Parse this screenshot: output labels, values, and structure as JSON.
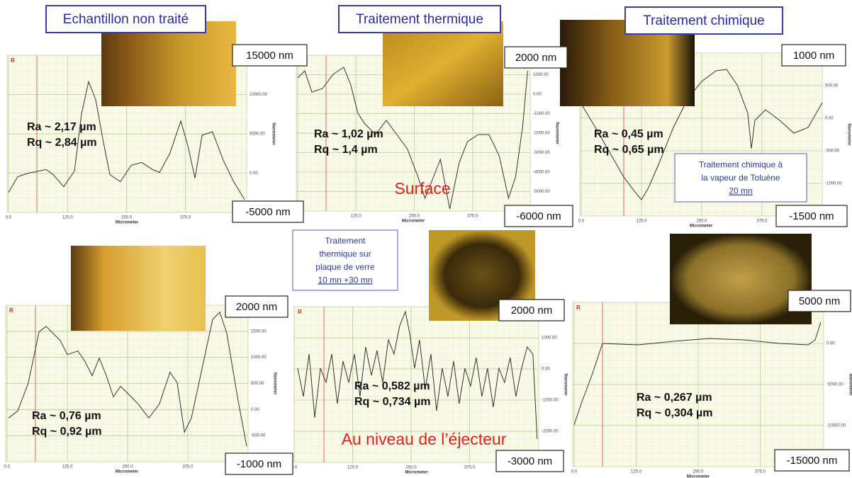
{
  "chart_data": [
    {
      "type": "line",
      "title": "Echantillon non traité",
      "ra": "Ra ~ 2,17 µm",
      "rq": "Rq ~ 2,84 µm",
      "top_label": "15000 nm",
      "bottom_label": "-5000 nm",
      "xlabel": "Micrometer",
      "ylabel": "Nanometer",
      "marker_label": "R",
      "color": "#333333",
      "x": [
        0,
        19.5,
        42,
        64.6,
        79.6,
        94.6,
        117,
        139.6,
        154.7,
        169.7,
        184.7,
        199.7,
        214.7,
        237,
        260,
        282,
        305,
        320,
        342,
        365,
        380,
        395,
        410,
        432,
        455,
        477,
        500
      ],
      "values": [
        -2450,
        -450,
        0,
        270,
        455,
        -180,
        -1730,
        270,
        7545,
        11640,
        9360,
        4360,
        -180,
        -1090,
        1000,
        1360,
        455,
        90,
        2545,
        6640,
        3450,
        -640,
        4820,
        5270,
        1640,
        -1090,
        -3360
      ],
      "xlim": [
        0,
        500
      ],
      "ylim": [
        -5000,
        15000
      ],
      "xticks": [
        {
          "value": 0,
          "label": "0.0"
        },
        {
          "value": 125,
          "label": "125.0"
        },
        {
          "value": 250,
          "label": "250.0"
        },
        {
          "value": 375,
          "label": "375.0"
        }
      ],
      "yticks": [
        {
          "value": 0,
          "label": "0.00"
        },
        {
          "value": 5000,
          "label": "5000.00"
        },
        {
          "value": 10000,
          "label": "10000.00"
        }
      ]
    },
    {
      "type": "line",
      "title": "Traitement thermique",
      "ra": "Ra ~ 1,02 µm",
      "rq": "Rq ~ 1,4 µm",
      "caption": "Surface",
      "top_label": "2000 nm",
      "bottom_label": "-6000 nm",
      "xlabel": "Micrometer",
      "ylabel": "Nanometer",
      "marker_label": "R",
      "color": "#333333",
      "x": [
        0,
        15.2,
        30.3,
        53.1,
        75.9,
        98.6,
        113.8,
        129,
        144,
        167,
        190,
        212.4,
        235,
        258,
        273,
        291,
        306,
        326,
        346,
        364,
        387,
        410,
        432,
        452,
        467,
        482,
        493
      ],
      "values": [
        836,
        1200,
        109,
        291,
        1018,
        1382,
        473,
        -982,
        -1527,
        -2073,
        -1345,
        -2073,
        -2800,
        -4255,
        -5345,
        -4255,
        -3345,
        -5891,
        -3527,
        -2436,
        -2073,
        -2073,
        -3164,
        -5345,
        -4255,
        -1709,
        1200
      ],
      "xlim": [
        0,
        500
      ],
      "ylim": [
        -6000,
        2000
      ],
      "xticks": [
        {
          "value": 0,
          "label": "0.0"
        },
        {
          "value": 125,
          "label": "125.0"
        },
        {
          "value": 250,
          "label": "250.0"
        },
        {
          "value": 375,
          "label": "375.0"
        }
      ],
      "yticks": [
        {
          "value": 1000,
          "label": "1000.00"
        },
        {
          "value": 0,
          "label": "0.00"
        },
        {
          "value": -1000,
          "label": "-1000.00"
        },
        {
          "value": -2000,
          "label": "-2000.00"
        },
        {
          "value": -3000,
          "label": "-3000.00"
        },
        {
          "value": -4000,
          "label": "-4000.00"
        },
        {
          "value": -5000,
          "label": "-5000.00"
        }
      ]
    },
    {
      "type": "line",
      "title": "Traitement chimique",
      "ra": "Ra ~ 0,45 µm",
      "rq": "Rq ~ 0,65 µm",
      "note": [
        "Traitement chimique à",
        "la vapeur de Toluène",
        "20 mn"
      ],
      "top_label": "1000 nm",
      "bottom_label": "-1500 nm",
      "xlabel": "Micrometer",
      "ylabel": "Nanometer",
      "marker_label": "R",
      "color": "#333333",
      "x": [
        2.9,
        29.4,
        58.8,
        88.2,
        110.3,
        125,
        139.7,
        161.8,
        191.2,
        220.6,
        250,
        279.4,
        301.5,
        323.5,
        345.6,
        352.9,
        360.3,
        382.4,
        411.8,
        441.2,
        470.6,
        500
      ],
      "values": [
        185,
        -141,
        -522,
        -902,
        -1120,
        -1250,
        -1065,
        -685,
        -141,
        293,
        565,
        728,
        750,
        511,
        76,
        -467,
        -33,
        130,
        -33,
        -228,
        -141,
        239
      ],
      "xlim": [
        0,
        500
      ],
      "ylim": [
        -1500,
        1000
      ],
      "xticks": [
        {
          "value": 0,
          "label": "0.0"
        },
        {
          "value": 125,
          "label": "125.0"
        },
        {
          "value": 250,
          "label": "250.0"
        },
        {
          "value": 375,
          "label": "375.0"
        }
      ],
      "yticks": [
        {
          "value": 500,
          "label": "500.00"
        },
        {
          "value": 0,
          "label": "0.00"
        },
        {
          "value": -500,
          "label": "-500.00"
        },
        {
          "value": -1000,
          "label": "-1000.00"
        }
      ]
    },
    {
      "type": "line",
      "ra": "Ra ~ 0,76 µm",
      "rq": "Rq ~ 0,92 µm",
      "top_label": "2000 nm",
      "bottom_label": "-1000 nm",
      "xlabel": "Micrometer",
      "ylabel": "Nanometer",
      "marker_label": "R",
      "color": "#333333",
      "x": [
        2.9,
        22,
        44.1,
        66.2,
        80.9,
        95.6,
        110.3,
        125,
        147,
        161.8,
        176.5,
        191.2,
        205.9,
        220.6,
        235.3,
        250,
        272,
        294,
        316,
        338,
        353,
        368,
        382.4,
        404.4,
        426.5,
        441.2,
        455.9,
        478,
        497
      ],
      "values": [
        -162,
        -27,
        514,
        1486,
        1595,
        1459,
        1324,
        1054,
        1122,
        919,
        649,
        986,
        649,
        243,
        446,
        311,
        108,
        -162,
        108,
        716,
        514,
        -432,
        -162,
        784,
        1730,
        1865,
        1459,
        243,
        -703
      ],
      "xlim": [
        0,
        500
      ],
      "ylim": [
        -1000,
        2000
      ],
      "xticks": [
        {
          "value": 0,
          "label": "0.0"
        },
        {
          "value": 125,
          "label": "125.0"
        },
        {
          "value": 250,
          "label": "250.0"
        },
        {
          "value": 375,
          "label": "375.0"
        }
      ],
      "yticks": [
        {
          "value": 1500,
          "label": "1500.00"
        },
        {
          "value": 1000,
          "label": "1000.00"
        },
        {
          "value": 500,
          "label": "500.00"
        },
        {
          "value": 0,
          "label": "0.00"
        },
        {
          "value": -500,
          "label": "-500.00"
        }
      ]
    },
    {
      "type": "line",
      "ra": "Ra ~ 0,582 µm",
      "rq": "Rq ~ 0,734 µm",
      "caption": "Au niveau de l’éjecteur",
      "note": [
        "Traitement",
        "thermique sur",
        "plaque de verre",
        "10 mn +30 mn"
      ],
      "top_label": "2000 nm",
      "bottom_label": "-3000 nm",
      "xlabel": "Micrometer",
      "ylabel": "Nanometer",
      "marker_label": "R",
      "color": "#333333",
      "x": [
        7.6,
        19.7,
        31.8,
        43.9,
        56.1,
        68.2,
        80.3,
        92.4,
        104.5,
        116.7,
        128.8,
        140.9,
        153,
        165.2,
        177.3,
        189.4,
        201.5,
        213.6,
        225.8,
        237.9,
        247,
        257.6,
        268.2,
        280.3,
        292.4,
        304.5,
        316.7,
        328.8,
        340.9,
        353,
        365.2,
        377.3,
        389.4,
        401.5,
        413.6,
        425.8,
        437.9,
        450,
        462.1,
        474.2,
        486.4,
        498.5,
        510.6,
        519.7
      ],
      "values": [
        23,
        -886,
        477,
        -1568,
        23,
        -432,
        477,
        -1114,
        250,
        -432,
        477,
        -886,
        705,
        -205,
        591,
        -432,
        932,
        477,
        1386,
        1841,
        1159,
        23,
        932,
        -659,
        477,
        -1341,
        23,
        -886,
        250,
        -1114,
        23,
        -545,
        364,
        -886,
        23,
        -1227,
        23,
        -432,
        364,
        -886,
        23,
        705,
        477,
        -2250
      ],
      "xlim": [
        0,
        520
      ],
      "ylim": [
        -3000,
        2000
      ],
      "xticks": [
        {
          "value": 0,
          "label": "0.0"
        },
        {
          "value": 125,
          "label": "125.0"
        },
        {
          "value": 250,
          "label": "250.0"
        },
        {
          "value": 375,
          "label": "375.0"
        }
      ],
      "yticks": [
        {
          "value": 1000,
          "label": "1000.00"
        },
        {
          "value": 0,
          "label": "0.00"
        },
        {
          "value": -1000,
          "label": "-1000.00"
        },
        {
          "value": -2000,
          "label": "-2000.00"
        }
      ]
    },
    {
      "type": "line",
      "ra": "Ra ~ 0,267 µm",
      "rq": "Rq ~ 0,304 µm",
      "top_label": "5000 nm",
      "bottom_label": "-15000 nm",
      "xlabel": "Micrometer",
      "ylabel": "Nanometer",
      "marker_label": "R",
      "color": "#333333",
      "x": [
        0,
        14.3,
        35.7,
        57.1,
        128.6,
        200,
        271.4,
        342.9,
        414.3,
        471.4,
        485.7,
        497
      ],
      "values": [
        -9914,
        -7328,
        -3879,
        0,
        -172,
        259,
        603,
        431,
        0,
        -172,
        431,
        2586
      ],
      "xlim": [
        0,
        500
      ],
      "ylim": [
        -15000,
        5000
      ],
      "xticks": [
        {
          "value": 0,
          "label": "0.0"
        },
        {
          "value": 125,
          "label": "125.0"
        },
        {
          "value": 250,
          "label": "250.0"
        },
        {
          "value": 375,
          "label": "375.0"
        }
      ],
      "yticks": [
        {
          "value": 0,
          "label": "0.00"
        },
        {
          "value": -5000,
          "label": "-5000.00"
        },
        {
          "value": -10000,
          "label": "-10000.00"
        }
      ]
    }
  ]
}
